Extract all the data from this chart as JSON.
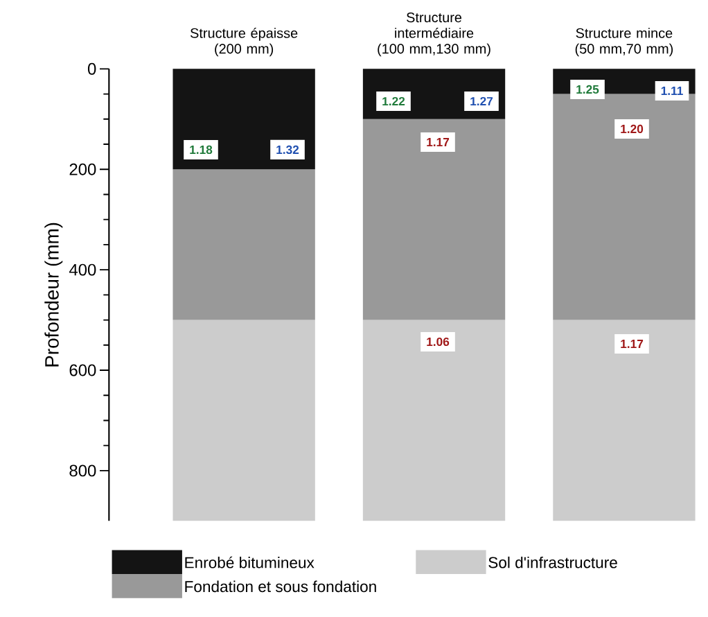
{
  "chart_data": {
    "type": "bar",
    "stacked": true,
    "ylabel": "Profondeur (mm)",
    "categories": [
      "Structure épaisse (200 mm)",
      "Structure intermédiaire (100 mm,130 mm)",
      "Structure mince (50 mm,70 mm)"
    ],
    "series": [
      {
        "name": "Enrobé bitumineux",
        "color": "#141414",
        "values": [
          200,
          100,
          50
        ]
      },
      {
        "name": "Fondation et sous fondation",
        "color": "#999999",
        "values": [
          300,
          400,
          450
        ]
      },
      {
        "name": "Sol d'infrastructure",
        "color": "#cccccc",
        "values": [
          400,
          400,
          400
        ]
      }
    ],
    "ylim": [
      900,
      0
    ],
    "yticks": [
      0,
      200,
      400,
      600,
      800
    ],
    "legend": "bottom",
    "annotations": [
      "1.18",
      "1.32",
      "1.22",
      "1.27",
      "1.17",
      "1.06",
      "1.25",
      "1.11",
      "1.20",
      "1.17"
    ]
  }
}
